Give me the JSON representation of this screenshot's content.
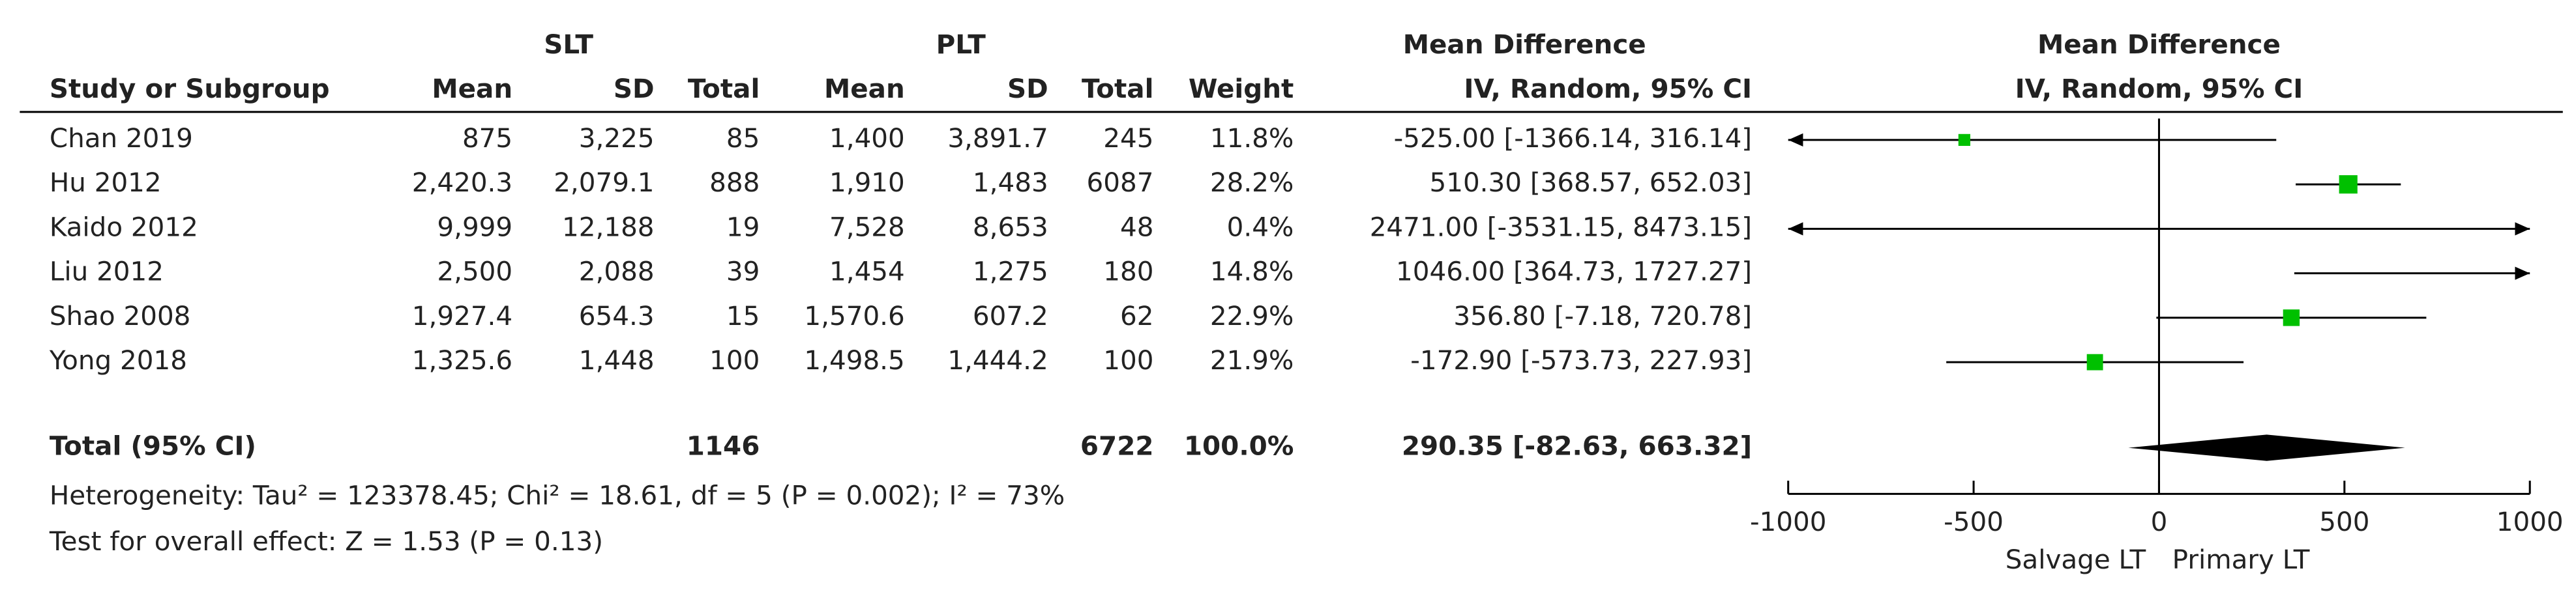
{
  "chart_data": {
    "type": "forest",
    "group_headers": {
      "slt": "SLT",
      "plt": "PLT",
      "table_md": "Mean Difference",
      "plot_md": "Mean Difference"
    },
    "column_headers": {
      "study": "Study or Subgroup",
      "slt_mean": "Mean",
      "slt_sd": "SD",
      "slt_total": "Total",
      "plt_mean": "Mean",
      "plt_sd": "SD",
      "plt_total": "Total",
      "weight": "Weight",
      "table_ci": "IV, Random, 95% CI",
      "plot_ci": "IV, Random, 95% CI"
    },
    "studies": [
      {
        "name": "Chan 2019",
        "slt_mean": "875",
        "slt_sd": "3,225",
        "slt_total": "85",
        "plt_mean": "1,400",
        "plt_sd": "3,891.7",
        "plt_total": "245",
        "weight_label": "11.8%",
        "ci_label": "-525.00 [-1366.14, 316.14]",
        "weight": 11.8,
        "md": -525.0,
        "ci": [
          -1366.14,
          316.14
        ]
      },
      {
        "name": "Hu 2012",
        "slt_mean": "2,420.3",
        "slt_sd": "2,079.1",
        "slt_total": "888",
        "plt_mean": "1,910",
        "plt_sd": "1,483",
        "plt_total": "6087",
        "weight_label": "28.2%",
        "ci_label": "510.30 [368.57, 652.03]",
        "weight": 28.2,
        "md": 510.3,
        "ci": [
          368.57,
          652.03
        ]
      },
      {
        "name": "Kaido 2012",
        "slt_mean": "9,999",
        "slt_sd": "12,188",
        "slt_total": "19",
        "plt_mean": "7,528",
        "plt_sd": "8,653",
        "plt_total": "48",
        "weight_label": "0.4%",
        "ci_label": "2471.00 [-3531.15, 8473.15]",
        "weight": 0.4,
        "md": 2471.0,
        "ci": [
          -3531.15,
          8473.15
        ]
      },
      {
        "name": "Liu 2012",
        "slt_mean": "2,500",
        "slt_sd": "2,088",
        "slt_total": "39",
        "plt_mean": "1,454",
        "plt_sd": "1,275",
        "plt_total": "180",
        "weight_label": "14.8%",
        "ci_label": "1046.00 [364.73, 1727.27]",
        "weight": 14.8,
        "md": 1046.0,
        "ci": [
          364.73,
          1727.27
        ]
      },
      {
        "name": "Shao 2008",
        "slt_mean": "1,927.4",
        "slt_sd": "654.3",
        "slt_total": "15",
        "plt_mean": "1,570.6",
        "plt_sd": "607.2",
        "plt_total": "62",
        "weight_label": "22.9%",
        "ci_label": "356.80 [-7.18, 720.78]",
        "weight": 22.9,
        "md": 356.8,
        "ci": [
          -7.18,
          720.78
        ]
      },
      {
        "name": "Yong 2018",
        "slt_mean": "1,325.6",
        "slt_sd": "1,448",
        "slt_total": "100",
        "plt_mean": "1,498.5",
        "plt_sd": "1,444.2",
        "plt_total": "100",
        "weight_label": "21.9%",
        "ci_label": "-172.90 [-573.73, 227.93]",
        "weight": 21.9,
        "md": -172.9,
        "ci": [
          -573.73,
          227.93
        ]
      }
    ],
    "total": {
      "name": "Total (95% CI)",
      "slt_total": "1146",
      "plt_total": "6722",
      "weight_label": "100.0%",
      "ci_label": "290.35 [-82.63, 663.32]",
      "md": 290.35,
      "ci": [
        -82.63,
        663.32
      ]
    },
    "footnotes": [
      "Heterogeneity: Tau² = 123378.45; Chi² = 18.61, df = 5 (P = 0.002); I² = 73%",
      "Test for overall effect: Z = 1.53 (P = 0.13)"
    ],
    "xlim": [
      -1000,
      1000
    ],
    "xticks": [
      -1000,
      -500,
      0,
      500,
      1000
    ],
    "favours": [
      "Salvage LT",
      "Primary LT"
    ],
    "square_color": "#00c000",
    "diamond_color": "#000000"
  }
}
